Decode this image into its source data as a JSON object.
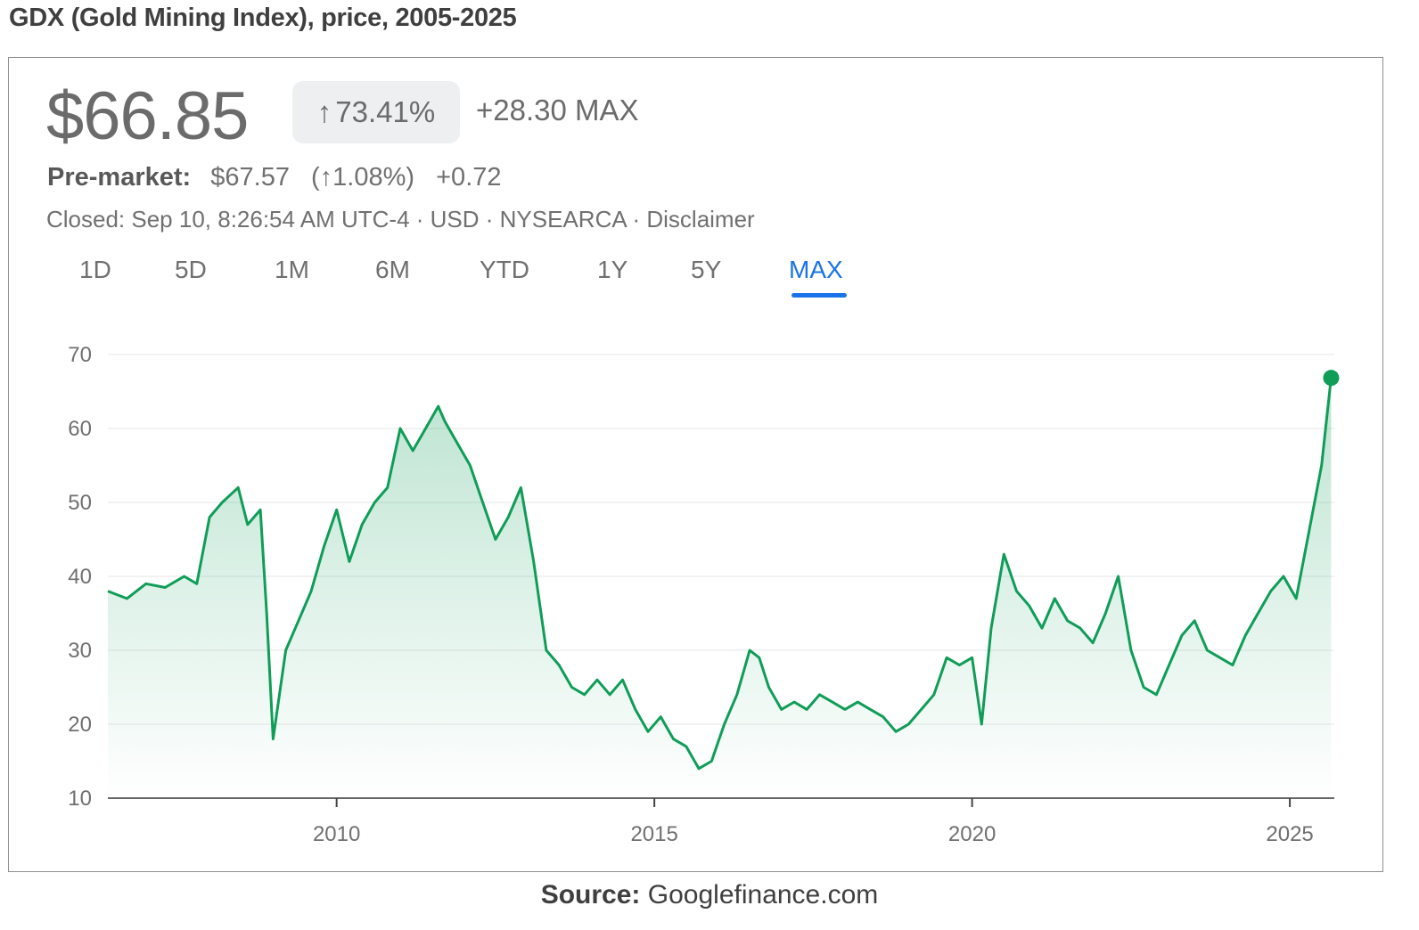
{
  "figure_title": "GDX (Gold Mining Index), price, 2005-2025",
  "header": {
    "price": "$66.85",
    "pct_change_arrow": "↑",
    "pct_change": "73.41%",
    "abs_change": "+28.30 MAX"
  },
  "premarket": {
    "label": "Pre-market:",
    "price": "$67.57",
    "pct": "(↑1.08%)",
    "change": "+0.72"
  },
  "status_line": "Closed: Sep 10, 8:26:54 AM UTC-4 · USD · NYSEARCA · Disclaimer",
  "tabs": [
    {
      "label": "1D",
      "active": false
    },
    {
      "label": "5D",
      "active": false
    },
    {
      "label": "1M",
      "active": false
    },
    {
      "label": "6M",
      "active": false
    },
    {
      "label": "YTD",
      "active": false
    },
    {
      "label": "1Y",
      "active": false
    },
    {
      "label": "5Y",
      "active": false
    },
    {
      "label": "MAX",
      "active": true
    }
  ],
  "colors": {
    "line": "#0f9d58",
    "accent": "#1a73e8",
    "muted": "#707070"
  },
  "source": {
    "label": "Source:",
    "value": "Googlefinance.com"
  },
  "chart_data": {
    "type": "area",
    "title": "",
    "xlabel": "",
    "ylabel": "",
    "ylim": [
      10,
      70
    ],
    "xlim": [
      2006.4,
      2025.7
    ],
    "y_ticks": [
      10,
      20,
      30,
      40,
      50,
      60,
      70
    ],
    "x_ticks": [
      2010,
      2015,
      2020,
      2025
    ],
    "grid": "horizontal",
    "series": [
      {
        "x": [
          2006.4,
          2006.7,
          2007.0,
          2007.3,
          2007.6,
          2007.8,
          2008.0,
          2008.2,
          2008.45,
          2008.6,
          2008.8,
          2008.9,
          2009.0,
          2009.2,
          2009.4,
          2009.6,
          2009.8,
          2010.0,
          2010.2,
          2010.4,
          2010.6,
          2010.8,
          2011.0,
          2011.2,
          2011.4,
          2011.6,
          2011.7,
          2011.9,
          2012.1,
          2012.3,
          2012.5,
          2012.7,
          2012.9,
          2013.1,
          2013.3,
          2013.5,
          2013.7,
          2013.9,
          2014.1,
          2014.3,
          2014.5,
          2014.7,
          2014.9,
          2015.1,
          2015.3,
          2015.5,
          2015.7,
          2015.9,
          2016.1,
          2016.3,
          2016.5,
          2016.65,
          2016.8,
          2017.0,
          2017.2,
          2017.4,
          2017.6,
          2017.8,
          2018.0,
          2018.2,
          2018.4,
          2018.6,
          2018.8,
          2019.0,
          2019.2,
          2019.4,
          2019.6,
          2019.8,
          2020.0,
          2020.15,
          2020.3,
          2020.5,
          2020.7,
          2020.9,
          2021.1,
          2021.3,
          2021.5,
          2021.7,
          2021.9,
          2022.1,
          2022.3,
          2022.5,
          2022.7,
          2022.9,
          2023.1,
          2023.3,
          2023.5,
          2023.7,
          2023.9,
          2024.1,
          2024.3,
          2024.5,
          2024.7,
          2024.9,
          2025.1,
          2025.3,
          2025.5,
          2025.65
        ],
        "y": [
          38,
          37,
          39,
          38.5,
          40,
          39,
          48,
          50,
          52,
          47,
          49,
          35,
          18,
          30,
          34,
          38,
          44,
          49,
          42,
          47,
          50,
          52,
          60,
          57,
          60,
          63,
          61,
          58,
          55,
          50,
          45,
          48,
          52,
          42,
          30,
          28,
          25,
          24,
          26,
          24,
          26,
          22,
          19,
          21,
          18,
          17,
          14,
          15,
          20,
          24,
          30,
          29,
          25,
          22,
          23,
          22,
          24,
          23,
          22,
          23,
          22,
          21,
          19,
          20,
          22,
          24,
          29,
          28,
          29,
          20,
          33,
          43,
          38,
          36,
          33,
          37,
          34,
          33,
          31,
          35,
          40,
          30,
          25,
          24,
          28,
          32,
          34,
          30,
          29,
          28,
          32,
          35,
          38,
          40,
          37,
          46,
          55,
          66.85
        ]
      }
    ]
  }
}
